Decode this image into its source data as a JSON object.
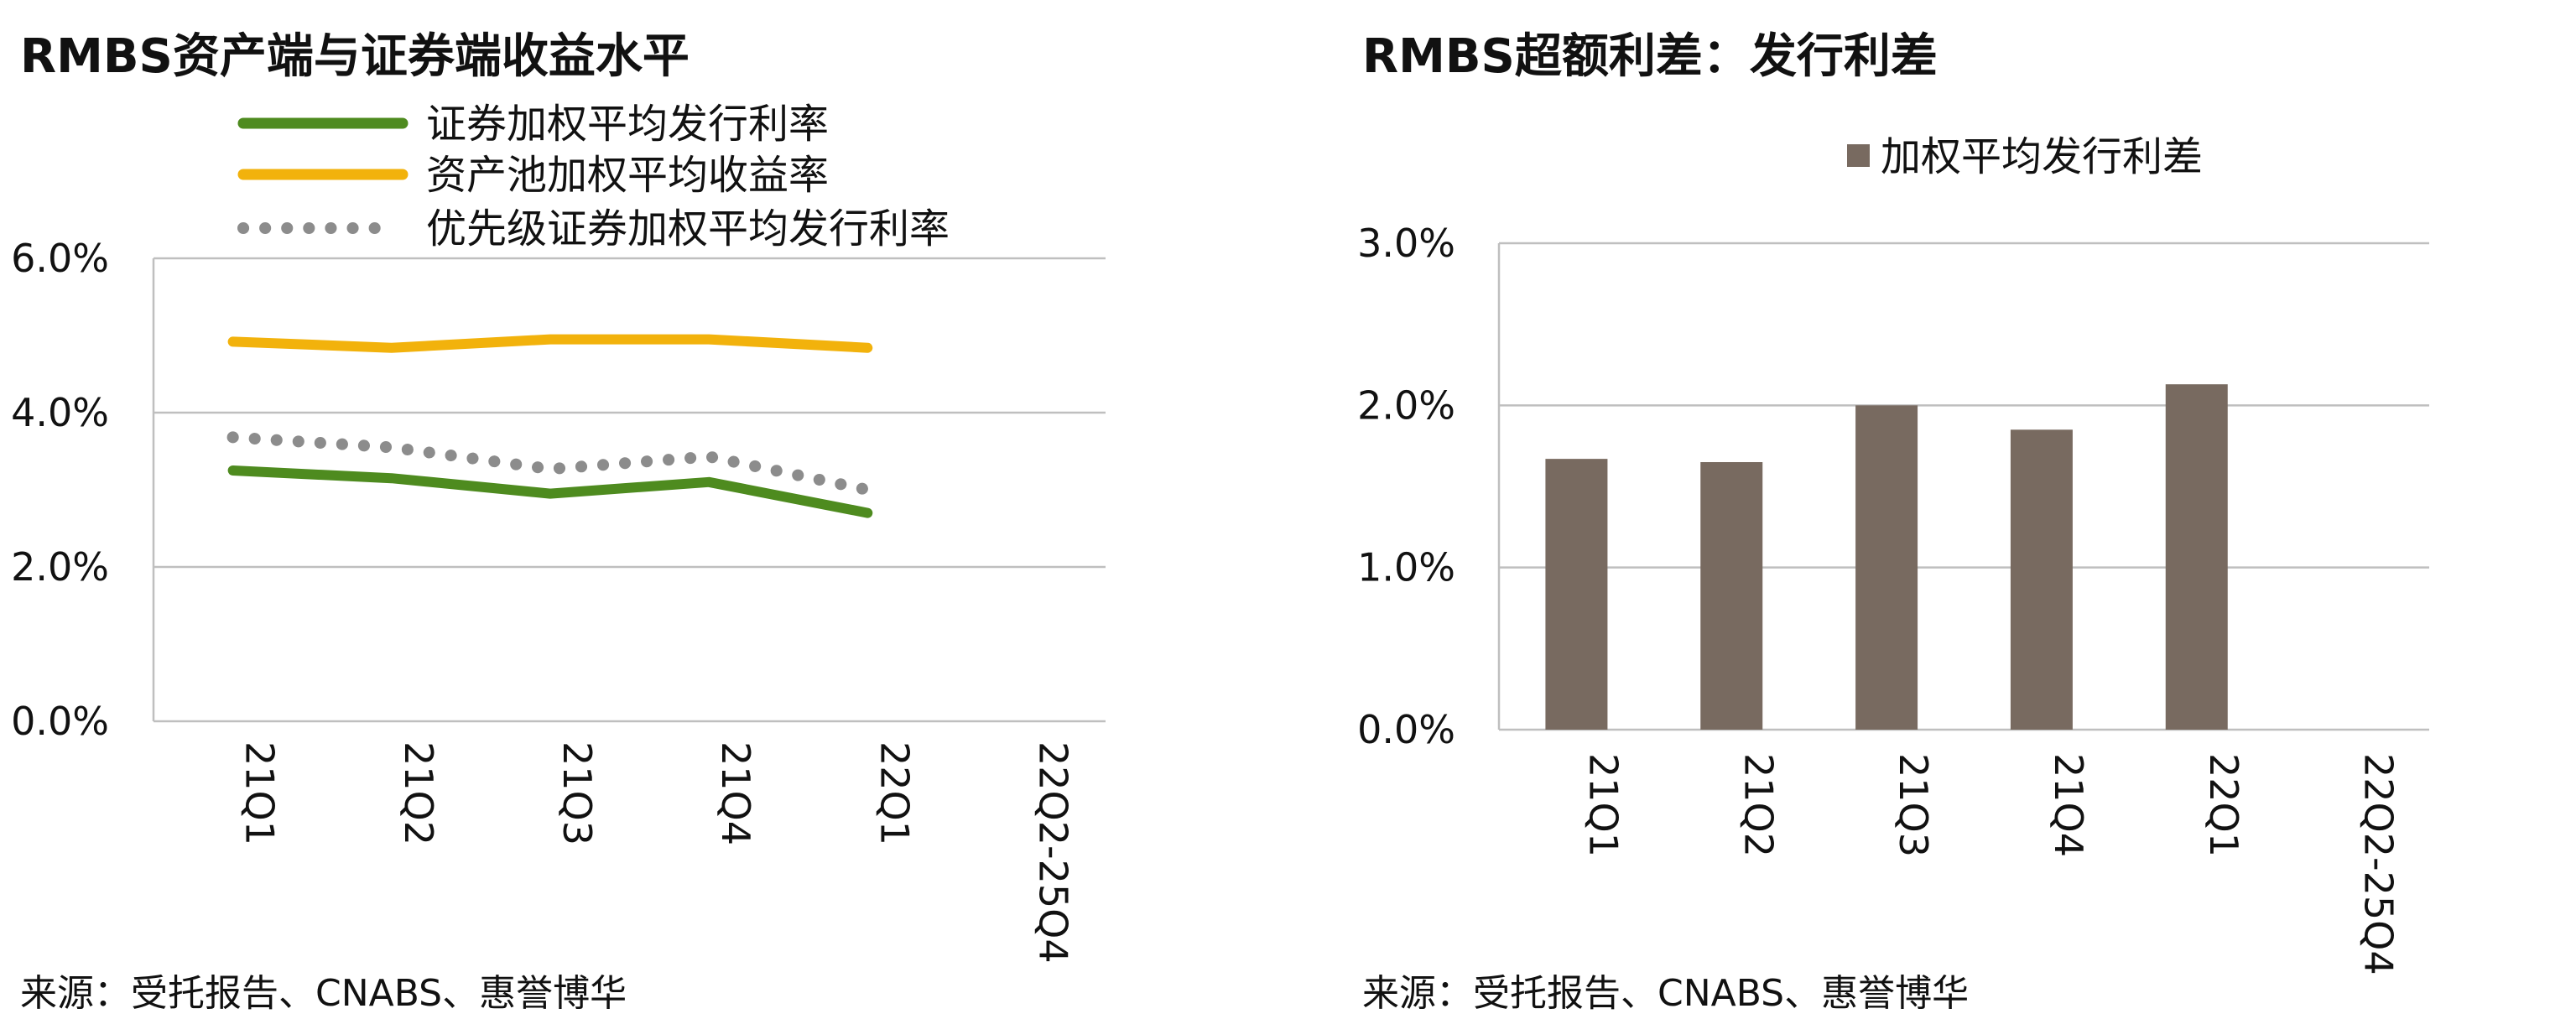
{
  "charts": [
    {
      "title": "RMBS资产端与证券端收益水平",
      "source": "来源：受托报告、CNABS、惠誉博华"
    },
    {
      "title": "RMBS超额利差：发行利差",
      "source": "来源：受托报告、CNABS、惠誉博华"
    }
  ],
  "colors": {
    "green": "#4e8b1f",
    "yellow": "#f2b20c",
    "gray_dot": "#8c8c8c",
    "bar": "#786a60",
    "grid": "#bfbfbf",
    "axis_text": "#111111"
  },
  "chart_data": [
    {
      "type": "line",
      "title": "RMBS资产端与证券端收益水平",
      "categories": [
        "21Q1",
        "21Q2",
        "21Q3",
        "21Q4",
        "22Q1",
        "22Q2-25Q4"
      ],
      "ylim": [
        0,
        6
      ],
      "yticks": [
        "0.0%",
        "2.0%",
        "4.0%",
        "6.0%"
      ],
      "grid": true,
      "legend_position": "top",
      "series": [
        {
          "name": "证券加权平均发行利率",
          "style": "solid",
          "color": "green",
          "values": [
            3.25,
            3.15,
            2.95,
            3.1,
            2.7,
            null
          ]
        },
        {
          "name": "资产池加权平均收益率",
          "style": "solid",
          "color": "yellow",
          "values": [
            4.92,
            4.84,
            4.95,
            4.95,
            4.84,
            null
          ]
        },
        {
          "name": "优先级证券加权平均发行利率",
          "style": "dotted",
          "color": "gray_dot",
          "values": [
            3.68,
            3.55,
            3.27,
            3.43,
            3.0,
            null
          ]
        }
      ]
    },
    {
      "type": "bar",
      "title": "RMBS超额利差：发行利差",
      "categories": [
        "21Q1",
        "21Q2",
        "21Q3",
        "21Q4",
        "22Q1",
        "22Q2-25Q4"
      ],
      "ylim": [
        0,
        3
      ],
      "yticks": [
        "0.0%",
        "1.0%",
        "2.0%",
        "3.0%"
      ],
      "grid": true,
      "legend_position": "top",
      "series": [
        {
          "name": "加权平均发行利差",
          "color": "bar",
          "values": [
            1.67,
            1.65,
            2.0,
            1.85,
            2.13,
            null
          ]
        }
      ]
    }
  ]
}
